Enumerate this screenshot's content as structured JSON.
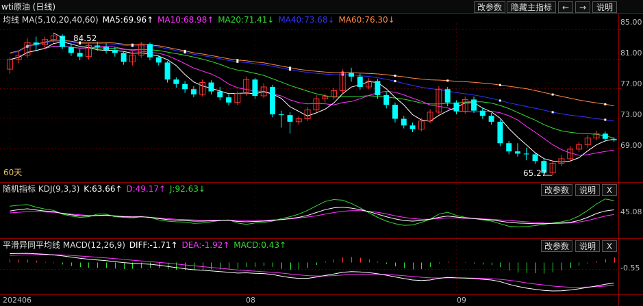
{
  "window": {
    "title": "wti原油 (日线)"
  },
  "toolbar": {
    "params_label": "改参数",
    "hide_main_label": "隐藏主指标",
    "prev_label": "←",
    "next_label": "→",
    "help_label": "说明",
    "close_label": "X"
  },
  "ma_legend": {
    "name": "均线",
    "params": "MA(5,10,20,40,60)",
    "items": [
      {
        "text": "MA5:69.96↑",
        "color": "#ffffff"
      },
      {
        "text": "MA10:68.98↑",
        "color": "#ff33ff"
      },
      {
        "text": "MA20:71.41↓",
        "color": "#33dd33"
      },
      {
        "text": "MA40:73.68↓",
        "color": "#3333ff"
      },
      {
        "text": "MA60:76.30↓",
        "color": "#ff8844"
      }
    ]
  },
  "kdj_legend": {
    "name": "随机指标",
    "params": "KDJ(9,3,3)",
    "items": [
      {
        "text": "K:63.66↑",
        "color": "#ffffff"
      },
      {
        "text": "D:49.17↑",
        "color": "#ff33ff"
      },
      {
        "text": "J:92.63↓",
        "color": "#33dd33"
      }
    ]
  },
  "macd_legend": {
    "name": "平滑异同平均线",
    "params": "MACD(12,26,9)",
    "items": [
      {
        "text": "DIFF:-1.71↑",
        "color": "#ffffff"
      },
      {
        "text": "DEA:-1.92↑",
        "color": "#ff33ff"
      },
      {
        "text": "MACD:0.43↑",
        "color": "#33dd33"
      }
    ]
  },
  "period_label": "60天",
  "annotations": {
    "high": "84.52",
    "low": "65.27"
  },
  "chart_data": {
    "type": "candlestick",
    "price_axis": {
      "ticks": [
        "85.00",
        "81.00",
        "77.00",
        "73.00",
        "69.00"
      ],
      "range": [
        65.0,
        85.8
      ]
    },
    "kdj_axis": {
      "ticks": [
        "45.08"
      ],
      "range": [
        -15,
        110
      ]
    },
    "macd_axis": {
      "ticks": [
        "-0.55"
      ],
      "range": [
        -2.55,
        0.95
      ]
    },
    "x_labels": [
      "202406",
      "08",
      "09"
    ],
    "x_label_index": [
      0,
      28,
      51
    ],
    "colors": {
      "up": "#ff3333",
      "down": "#00ffff",
      "ma5": "#ffffff",
      "ma10": "#ff33ff",
      "ma20": "#33dd33",
      "ma40": "#3333ff",
      "ma60": "#ff8844"
    },
    "candles": [
      [
        79.6,
        80.9,
        79.0,
        81.2
      ],
      [
        80.9,
        81.5,
        80.4,
        82.0
      ],
      [
        81.5,
        83.2,
        81.1,
        83.8
      ],
      [
        83.2,
        82.9,
        82.0,
        84.0
      ],
      [
        82.9,
        83.6,
        82.3,
        84.0
      ],
      [
        83.6,
        84.1,
        83.2,
        84.5
      ],
      [
        84.1,
        82.6,
        82.3,
        84.3
      ],
      [
        82.6,
        81.8,
        81.4,
        83.1
      ],
      [
        81.8,
        81.3,
        80.8,
        82.3
      ],
      [
        81.3,
        82.8,
        80.9,
        83.1
      ],
      [
        82.8,
        82.6,
        82.1,
        83.3
      ],
      [
        82.6,
        82.2,
        81.7,
        83.1
      ],
      [
        82.2,
        81.8,
        81.3,
        82.6
      ],
      [
        81.8,
        80.6,
        80.2,
        82.0
      ],
      [
        80.6,
        81.5,
        80.1,
        82.0
      ],
      [
        81.5,
        83.0,
        81.1,
        83.3
      ],
      [
        83.0,
        81.2,
        80.8,
        83.2
      ],
      [
        81.2,
        80.5,
        80.1,
        81.5
      ],
      [
        80.5,
        78.2,
        77.8,
        80.7
      ],
      [
        78.2,
        77.6,
        77.1,
        78.5
      ],
      [
        77.6,
        76.9,
        76.4,
        78.0
      ],
      [
        76.9,
        76.2,
        75.8,
        77.3
      ],
      [
        76.2,
        77.8,
        75.9,
        78.2
      ],
      [
        77.8,
        76.6,
        76.2,
        78.1
      ],
      [
        76.6,
        75.8,
        75.4,
        77.2
      ],
      [
        75.8,
        75.1,
        74.7,
        76.2
      ],
      [
        75.1,
        76.3,
        74.8,
        76.6
      ],
      [
        76.3,
        78.2,
        76.0,
        78.6
      ],
      [
        78.2,
        76.0,
        75.6,
        78.4
      ],
      [
        76.0,
        77.2,
        75.7,
        77.7
      ],
      [
        77.2,
        73.5,
        73.1,
        77.5
      ],
      [
        73.5,
        73.4,
        71.7,
        74.0
      ],
      [
        73.4,
        72.5,
        70.9,
        73.8
      ],
      [
        72.5,
        72.9,
        72.1,
        73.2
      ],
      [
        72.9,
        74.1,
        72.6,
        74.5
      ],
      [
        74.1,
        75.6,
        73.8,
        76.1
      ],
      [
        75.6,
        75.9,
        75.1,
        76.3
      ],
      [
        75.9,
        76.7,
        75.5,
        77.1
      ],
      [
        76.7,
        79.1,
        76.3,
        79.6
      ],
      [
        79.1,
        78.6,
        77.9,
        79.8
      ],
      [
        78.6,
        77.2,
        76.8,
        79.0
      ],
      [
        77.2,
        78.0,
        76.9,
        78.4
      ],
      [
        78.0,
        76.1,
        75.6,
        78.3
      ],
      [
        76.1,
        74.8,
        74.3,
        76.5
      ],
      [
        74.8,
        72.9,
        72.4,
        75.1
      ],
      [
        72.9,
        72.0,
        71.6,
        73.3
      ],
      [
        72.0,
        71.5,
        71.1,
        72.4
      ],
      [
        71.5,
        72.6,
        71.2,
        73.0
      ],
      [
        72.6,
        73.8,
        72.3,
        74.2
      ],
      [
        73.8,
        76.9,
        73.5,
        77.3
      ],
      [
        76.9,
        75.1,
        74.6,
        77.2
      ],
      [
        75.1,
        73.9,
        73.5,
        75.4
      ],
      [
        73.9,
        75.5,
        73.6,
        75.9
      ],
      [
        75.5,
        74.0,
        73.7,
        75.9
      ],
      [
        74.0,
        73.3,
        72.9,
        74.4
      ],
      [
        73.3,
        72.5,
        72.1,
        73.7
      ],
      [
        72.5,
        69.6,
        69.2,
        72.8
      ],
      [
        69.6,
        68.5,
        68.1,
        69.9
      ],
      [
        68.5,
        68.2,
        67.8,
        69.6
      ],
      [
        68.2,
        68.1,
        67.3,
        69.0
      ],
      [
        68.1,
        67.2,
        66.8,
        68.4
      ],
      [
        67.2,
        65.6,
        65.27,
        67.6
      ],
      [
        65.6,
        66.9,
        65.3,
        67.3
      ],
      [
        66.9,
        67.5,
        66.5,
        68.0
      ],
      [
        67.5,
        68.8,
        67.2,
        69.2
      ],
      [
        68.8,
        69.4,
        68.4,
        69.8
      ],
      [
        69.4,
        70.3,
        69.0,
        70.7
      ],
      [
        70.3,
        70.9,
        70.0,
        71.3
      ],
      [
        70.9,
        70.2,
        69.8,
        71.2
      ],
      [
        70.2,
        70.0,
        69.8,
        70.4
      ]
    ],
    "kdj": {
      "k": [
        60,
        64,
        67,
        63,
        60,
        58,
        52,
        48,
        45,
        44,
        46,
        47,
        44,
        42,
        41,
        42,
        40,
        36,
        33,
        31,
        30,
        28,
        28,
        29,
        30,
        31,
        27,
        26,
        27,
        28,
        30,
        33,
        36,
        40,
        46,
        55,
        64,
        70,
        72,
        69,
        64,
        58,
        50,
        42,
        35,
        30,
        28,
        30,
        34,
        40,
        44,
        41,
        38,
        36,
        34,
        32,
        28,
        24,
        22,
        21,
        20,
        20,
        21,
        22,
        24,
        30,
        40,
        52,
        60,
        63.66
      ],
      "d": [
        54,
        56,
        58,
        58,
        57,
        56,
        53,
        50,
        48,
        46,
        46,
        46,
        45,
        43,
        42,
        42,
        40,
        38,
        36,
        34,
        33,
        32,
        31,
        31,
        31,
        31,
        30,
        30,
        30,
        31,
        32,
        33,
        35,
        38,
        41,
        45,
        50,
        55,
        59,
        61,
        61,
        59,
        56,
        51,
        45,
        40,
        36,
        34,
        34,
        36,
        38,
        38,
        37,
        36,
        35,
        34,
        32,
        30,
        28,
        26,
        24,
        22,
        21,
        21,
        22,
        25,
        30,
        37,
        44,
        49.17
      ],
      "j": [
        75,
        78,
        80,
        72,
        66,
        62,
        50,
        44,
        40,
        42,
        50,
        50,
        42,
        40,
        38,
        42,
        40,
        32,
        28,
        26,
        25,
        21,
        22,
        26,
        30,
        32,
        22,
        18,
        22,
        24,
        28,
        36,
        42,
        50,
        62,
        76,
        90,
        96,
        94,
        84,
        70,
        55,
        40,
        28,
        20,
        15,
        16,
        24,
        34,
        50,
        56,
        46,
        40,
        36,
        32,
        28,
        20,
        12,
        10,
        11,
        14,
        18,
        22,
        26,
        32,
        44,
        62,
        82,
        98,
        92.63
      ]
    },
    "macd": {
      "diff": [
        0.75,
        0.76,
        0.77,
        0.74,
        0.7,
        0.64,
        0.56,
        0.46,
        0.36,
        0.28,
        0.22,
        0.16,
        0.08,
        0.0,
        -0.06,
        -0.1,
        -0.14,
        -0.22,
        -0.32,
        -0.42,
        -0.52,
        -0.6,
        -0.64,
        -0.7,
        -0.76,
        -0.82,
        -0.88,
        -0.86,
        -0.9,
        -0.92,
        -1.0,
        -1.14,
        -1.26,
        -1.32,
        -1.32,
        -1.22,
        -1.08,
        -0.96,
        -0.82,
        -0.76,
        -0.78,
        -0.84,
        -0.94,
        -1.06,
        -1.2,
        -1.34,
        -1.46,
        -1.5,
        -1.46,
        -1.32,
        -1.24,
        -1.28,
        -1.3,
        -1.34,
        -1.4,
        -1.46,
        -1.6,
        -1.82,
        -2.0,
        -2.14,
        -2.24,
        -2.34,
        -2.38,
        -2.36,
        -2.3,
        -2.2,
        -2.08,
        -1.96,
        -1.82,
        -1.71
      ],
      "dea": [
        0.6,
        0.63,
        0.65,
        0.66,
        0.67,
        0.66,
        0.64,
        0.6,
        0.55,
        0.5,
        0.44,
        0.39,
        0.33,
        0.27,
        0.2,
        0.14,
        0.08,
        0.02,
        -0.05,
        -0.12,
        -0.2,
        -0.27,
        -0.34,
        -0.41,
        -0.48,
        -0.55,
        -0.62,
        -0.67,
        -0.72,
        -0.77,
        -0.82,
        -0.88,
        -0.96,
        -1.03,
        -1.09,
        -1.12,
        -1.12,
        -1.09,
        -1.04,
        -1.0,
        -0.98,
        -0.97,
        -0.98,
        -1.0,
        -1.04,
        -1.1,
        -1.17,
        -1.23,
        -1.28,
        -1.29,
        -1.28,
        -1.28,
        -1.29,
        -1.3,
        -1.32,
        -1.35,
        -1.4,
        -1.48,
        -1.58,
        -1.7,
        -1.8,
        -1.88,
        -1.97,
        -2.03,
        -2.07,
        -2.07,
        -2.05,
        -2.02,
        -1.97,
        -1.92
      ],
      "macd": [
        0.3,
        0.26,
        0.24,
        0.16,
        0.06,
        -0.04,
        -0.16,
        -0.28,
        -0.38,
        -0.44,
        -0.44,
        -0.46,
        -0.5,
        -0.54,
        -0.52,
        -0.48,
        -0.44,
        -0.48,
        -0.54,
        -0.6,
        -0.64,
        -0.66,
        -0.6,
        -0.58,
        -0.56,
        -0.54,
        -0.52,
        -0.38,
        -0.36,
        -0.3,
        -0.36,
        -0.52,
        -0.6,
        -0.58,
        -0.46,
        -0.2,
        0.08,
        0.26,
        0.44,
        0.48,
        0.4,
        0.26,
        0.08,
        -0.12,
        -0.32,
        -0.48,
        -0.58,
        -0.54,
        -0.36,
        -0.06,
        0.08,
        0.0,
        -0.02,
        -0.08,
        -0.16,
        -0.22,
        -0.4,
        -0.68,
        -0.84,
        -0.88,
        -0.88,
        -0.92,
        -0.82,
        -0.66,
        -0.46,
        -0.26,
        -0.06,
        0.12,
        0.3,
        0.43
      ]
    }
  }
}
